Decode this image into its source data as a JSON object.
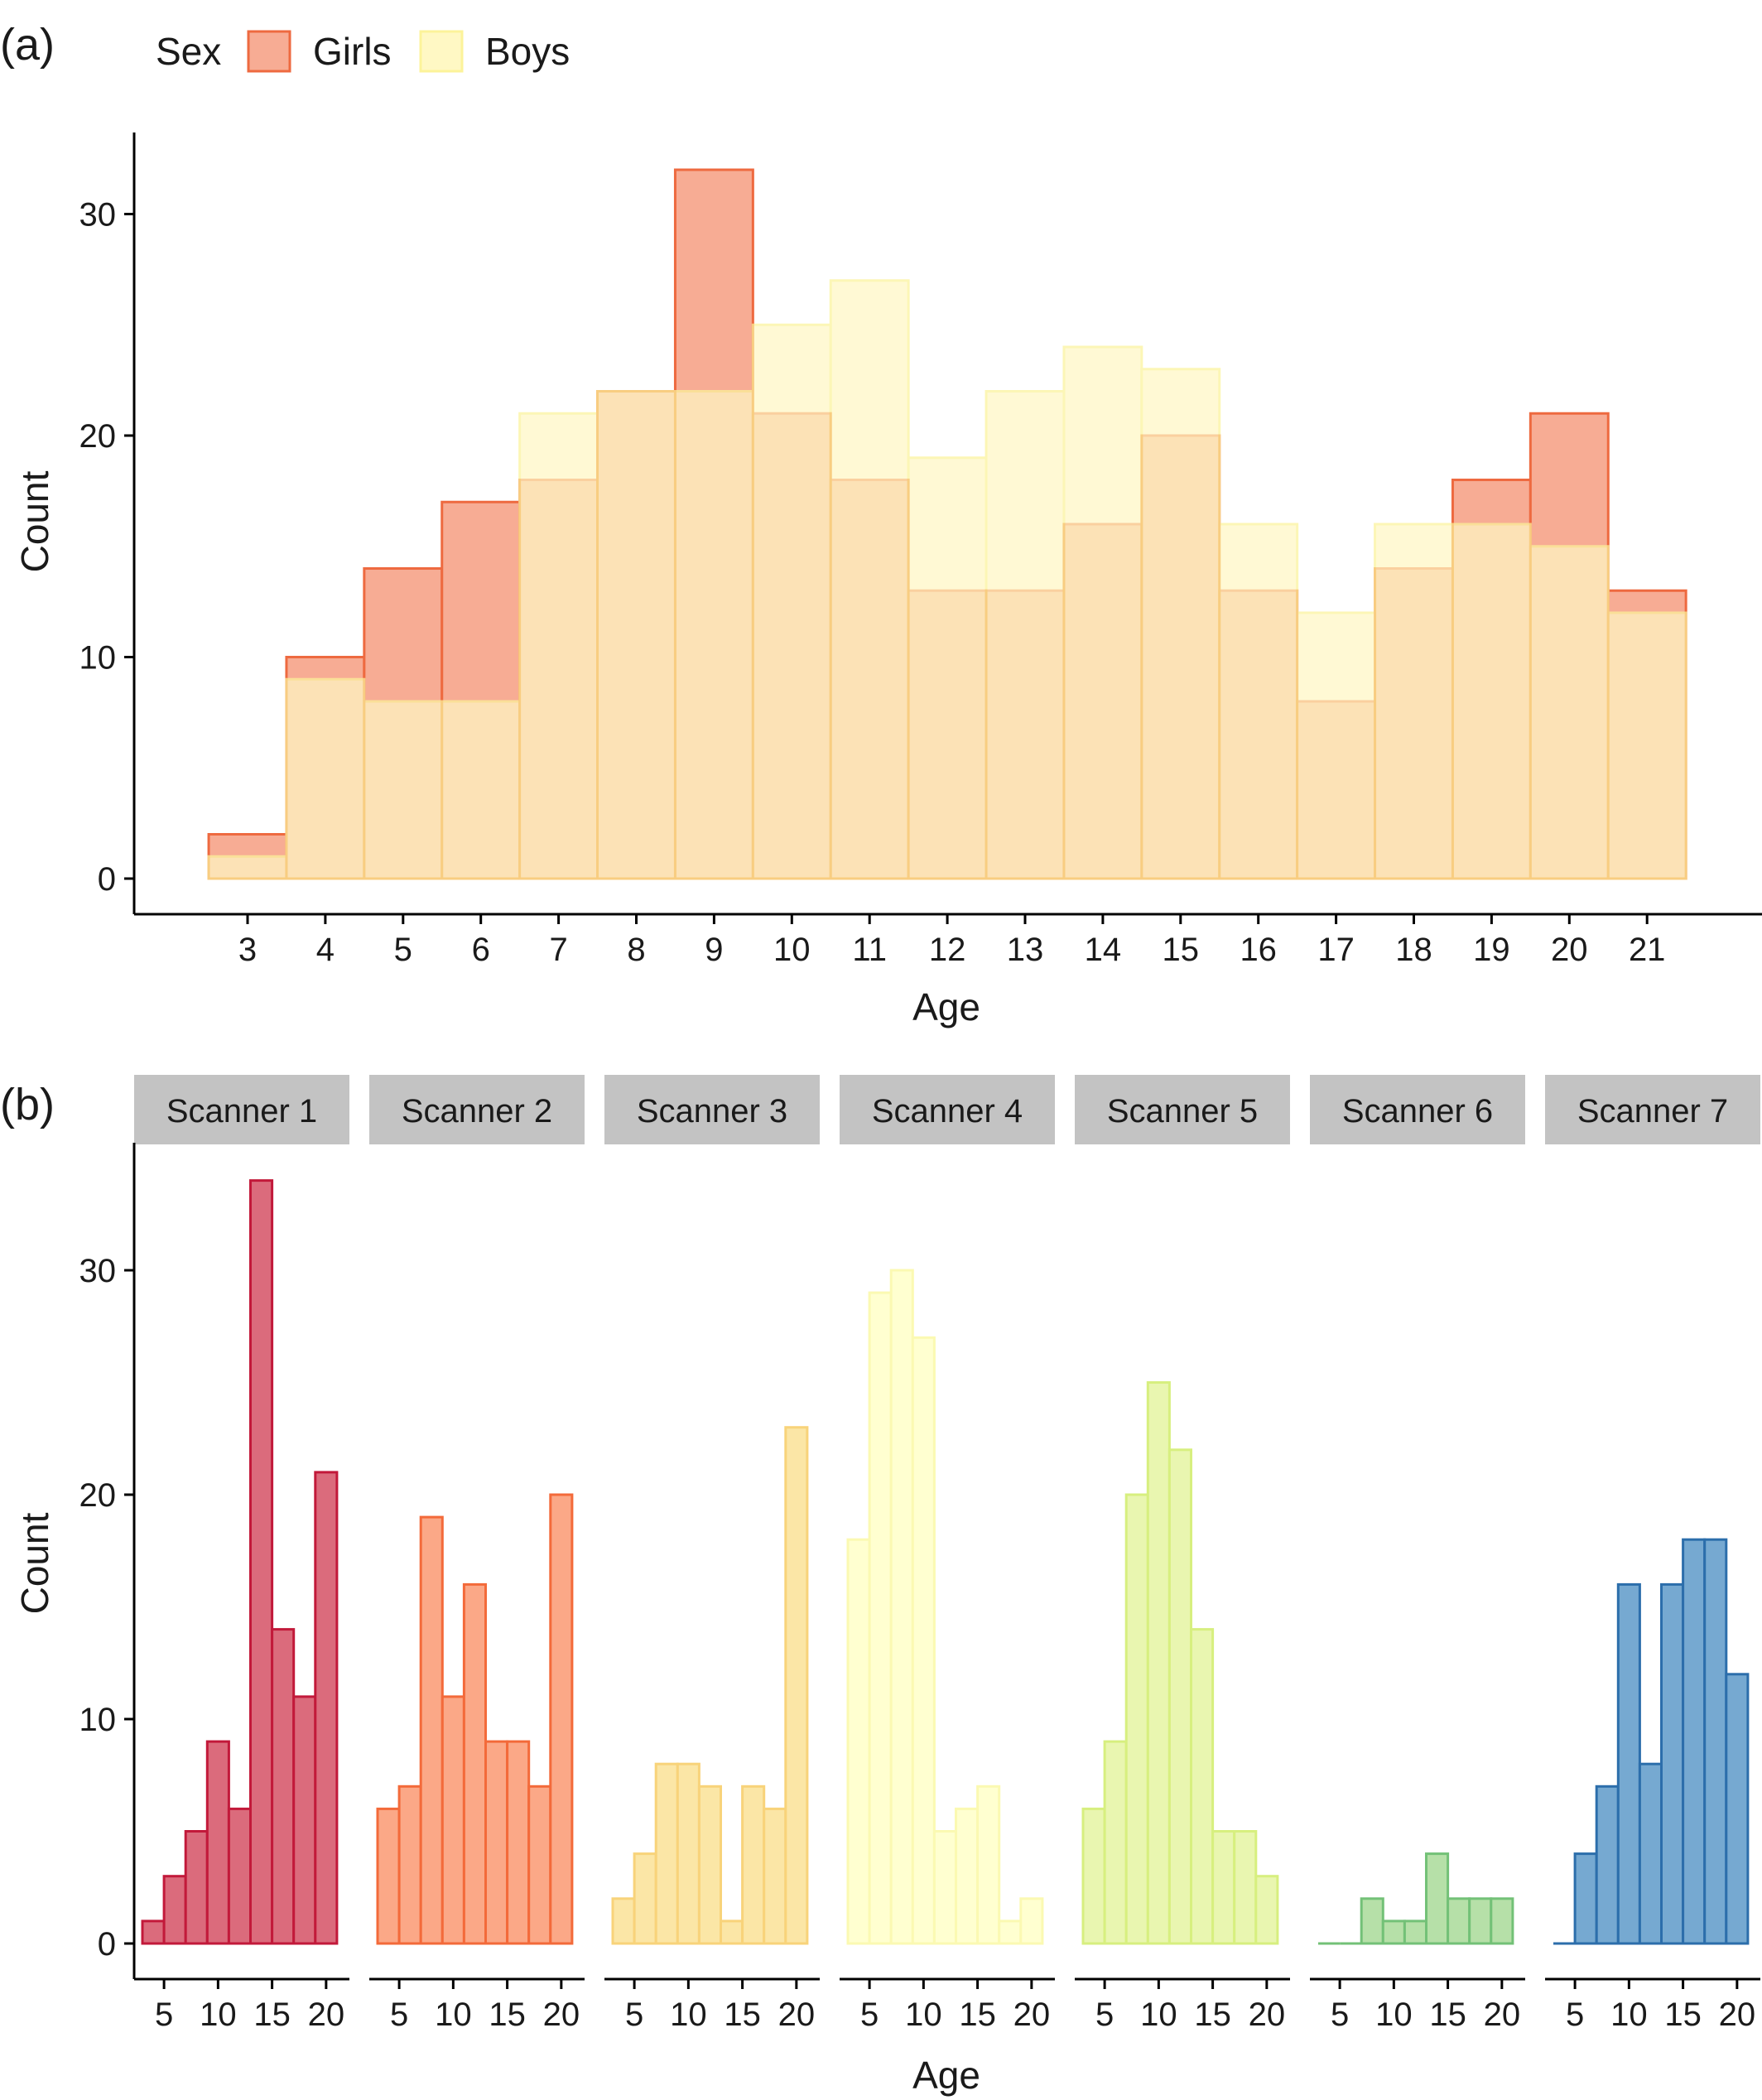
{
  "chart_data": [
    {
      "type": "bar",
      "panel_label": "(a)",
      "xlabel": "Age",
      "ylabel": "Count",
      "ylim": [
        0,
        33.5
      ],
      "yticks": [
        0,
        10,
        20,
        30
      ],
      "categories": [
        "3",
        "4",
        "5",
        "6",
        "7",
        "8",
        "9",
        "10",
        "11",
        "12",
        "13",
        "14",
        "15",
        "16",
        "17",
        "18",
        "19",
        "20",
        "21"
      ],
      "legend": {
        "title": "Sex",
        "placement": "top-left"
      },
      "series": [
        {
          "name": "Girls",
          "fill": "#f7ac94",
          "stroke": "#ee6a40",
          "values": [
            2,
            10,
            14,
            17,
            18,
            22,
            32,
            21,
            18,
            13,
            13,
            16,
            20,
            13,
            8,
            14,
            18,
            21,
            13
          ]
        },
        {
          "name": "Boys",
          "fill": "#fff8c4",
          "stroke": "#fcf39a",
          "values": [
            1,
            9,
            8,
            8,
            21,
            22,
            22,
            25,
            27,
            19,
            22,
            24,
            23,
            16,
            12,
            16,
            16,
            15,
            12
          ]
        }
      ]
    },
    {
      "type": "bar",
      "panel_label": "(b)",
      "xlabel": "Age",
      "ylabel": "Count",
      "ylim": [
        0,
        35.3
      ],
      "yticks": [
        0,
        10,
        20,
        30
      ],
      "xticks": [
        5,
        10,
        15,
        20
      ],
      "bin_centers": [
        4,
        6,
        8,
        10,
        12,
        14,
        16,
        18,
        20
      ],
      "facets": [
        {
          "label": "Scanner 1",
          "fill": "#db6b7c",
          "stroke": "#c2193a",
          "values": [
            1,
            3,
            5,
            9,
            6,
            34,
            14,
            11,
            21
          ]
        },
        {
          "label": "Scanner 2",
          "fill": "#fba887",
          "stroke": "#f36a3a",
          "values": [
            6,
            7,
            19,
            11,
            16,
            9,
            9,
            7,
            20
          ]
        },
        {
          "label": "Scanner 3",
          "fill": "#fbe6a6",
          "stroke": "#f8d37a",
          "values": [
            2,
            4,
            8,
            8,
            7,
            1,
            7,
            6,
            23
          ]
        },
        {
          "label": "Scanner 4",
          "fill": "#ffffd0",
          "stroke": "#fbf9b2",
          "values": [
            18,
            29,
            30,
            27,
            5,
            6,
            7,
            1,
            2
          ]
        },
        {
          "label": "Scanner 5",
          "fill": "#e9f6b0",
          "stroke": "#d7ef7f",
          "values": [
            6,
            9,
            20,
            25,
            22,
            14,
            5,
            5,
            3
          ]
        },
        {
          "label": "Scanner 6",
          "fill": "#b6e0a8",
          "stroke": "#73c177",
          "values": [
            0,
            0,
            2,
            1,
            1,
            4,
            2,
            2,
            2
          ]
        },
        {
          "label": "Scanner 7",
          "fill": "#76a9d1",
          "stroke": "#2c6eab",
          "values": [
            0,
            4,
            7,
            16,
            8,
            16,
            18,
            18,
            12
          ]
        }
      ]
    }
  ]
}
